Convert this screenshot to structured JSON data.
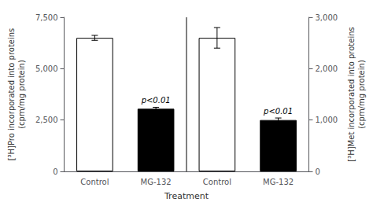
{
  "chart_data": {
    "type": "bar",
    "xlabel": "Treatment",
    "ylabel": "[³H]Pro incorporated into proteins\n(cpm/mg protein)",
    "y2label": "[³H]Met incorporated into proteins\n(cpm/mg protein)",
    "categories": [
      "Control",
      "MG-132",
      "Control",
      "MG-132"
    ],
    "series": [
      {
        "values": [
          6500,
          3050,
          null,
          null
        ],
        "errors": [
          120,
          70,
          null,
          null
        ],
        "colors": [
          "white",
          "black",
          null,
          null
        ],
        "annotations": [
          null,
          "p<0.01",
          null,
          null
        ]
      },
      {
        "axis": "y2",
        "values": [
          null,
          null,
          2600,
          1000
        ],
        "errors": [
          null,
          null,
          200,
          40
        ],
        "colors": [
          null,
          null,
          "white",
          "black"
        ],
        "annotations": [
          null,
          null,
          null,
          "p<0.01"
        ]
      }
    ],
    "ylim": [
      0,
      7500
    ],
    "yticks": [
      0,
      2500,
      5000,
      7500
    ],
    "y2lim": [
      0,
      3000
    ],
    "y2ticks": [
      0,
      1000,
      2000,
      3000
    ],
    "grid": false
  }
}
